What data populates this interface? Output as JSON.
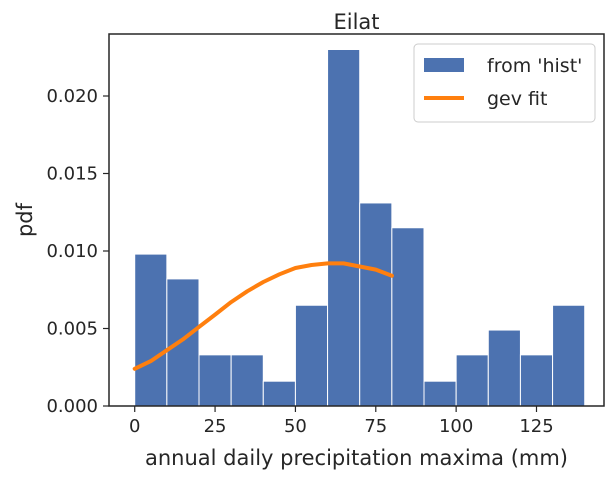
{
  "chart_data": {
    "type": "bar",
    "title": "Eilat",
    "xlabel": "annual daily precipitation maxima (mm)",
    "ylabel": "pdf",
    "xlim": [
      -8,
      146
    ],
    "ylim": [
      0,
      0.024
    ],
    "xticks": [
      0,
      25,
      50,
      75,
      100,
      125
    ],
    "yticks": [
      0.0,
      0.005,
      0.01,
      0.015,
      0.02
    ],
    "ytick_labels": [
      "0.000",
      "0.005",
      "0.010",
      "0.015",
      "0.020"
    ],
    "xtick_labels": [
      "0",
      "25",
      "50",
      "75",
      "100",
      "125"
    ],
    "legend_position": "top-right",
    "grid": false,
    "series": [
      {
        "name": "from 'hist'",
        "kind": "histogram",
        "color": "#4c72b0",
        "bin_edges": [
          0,
          10,
          20,
          30,
          40,
          50,
          60,
          70,
          80,
          90,
          100,
          110,
          120,
          130,
          140
        ],
        "values": [
          0.0098,
          0.0082,
          0.0033,
          0.0033,
          0.0016,
          0.0065,
          0.023,
          0.0131,
          0.0115,
          0.0016,
          0.0033,
          0.0049,
          0.0033,
          0.0065
        ]
      },
      {
        "name": "gev fit",
        "kind": "line",
        "color": "#ff7f0e",
        "x": [
          0,
          5,
          10,
          15,
          20,
          25,
          30,
          35,
          40,
          45,
          50,
          55,
          60,
          65,
          70,
          75,
          80
        ],
        "y": [
          0.0024,
          0.0029,
          0.0036,
          0.0043,
          0.0051,
          0.0059,
          0.0067,
          0.0074,
          0.008,
          0.0085,
          0.0089,
          0.0091,
          0.0092,
          0.0092,
          0.009,
          0.0088,
          0.0084
        ]
      }
    ]
  }
}
